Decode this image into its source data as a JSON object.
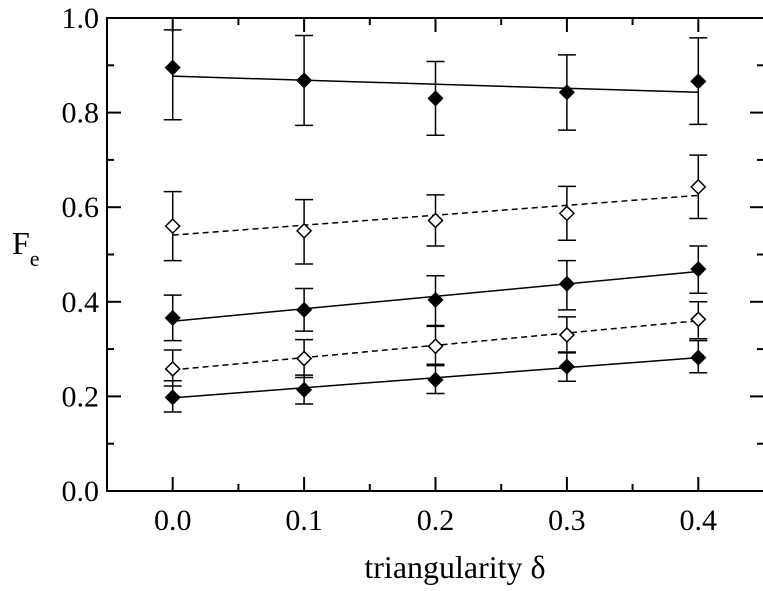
{
  "chart_data": {
    "type": "scatter",
    "xlabel": "triangularity δ",
    "ylabel": "F",
    "ylabel_subscript": "e",
    "xlim": [
      -0.05,
      0.45
    ],
    "ylim": [
      0.0,
      1.0
    ],
    "x_ticks": [
      "0.0",
      "0.1",
      "0.2",
      "0.3",
      "0.4"
    ],
    "y_ticks": [
      "0.0",
      "0.2",
      "0.4",
      "0.6",
      "0.8",
      "1.0"
    ],
    "grid": false,
    "x": [
      0.0,
      0.1,
      0.2,
      0.3,
      0.4
    ],
    "series": [
      {
        "marker": "filled-diamond",
        "line": "solid",
        "values": [
          0.895,
          0.868,
          0.83,
          0.843,
          0.866
        ],
        "err_low": [
          0.785,
          0.773,
          0.752,
          0.763,
          0.775
        ],
        "err_high": [
          0.975,
          0.963,
          0.908,
          0.922,
          0.958
        ],
        "fit": [
          0.877,
          0.843
        ]
      },
      {
        "marker": "open-diamond",
        "line": "dashed",
        "values": [
          0.56,
          0.55,
          0.572,
          0.587,
          0.643
        ],
        "err_low": [
          0.487,
          0.48,
          0.518,
          0.53,
          0.576
        ],
        "err_high": [
          0.633,
          0.616,
          0.626,
          0.644,
          0.71
        ],
        "fit": [
          0.541,
          0.625
        ]
      },
      {
        "marker": "filled-diamond",
        "line": "solid",
        "values": [
          0.366,
          0.383,
          0.404,
          0.438,
          0.469
        ],
        "err_low": [
          0.318,
          0.338,
          0.348,
          0.383,
          0.418
        ],
        "err_high": [
          0.414,
          0.428,
          0.455,
          0.487,
          0.518
        ],
        "fit": [
          0.359,
          0.464
        ]
      },
      {
        "marker": "open-diamond",
        "line": "dashed",
        "values": [
          0.258,
          0.28,
          0.306,
          0.33,
          0.363
        ],
        "err_low": [
          0.222,
          0.24,
          0.268,
          0.292,
          0.322
        ],
        "err_high": [
          0.298,
          0.32,
          0.35,
          0.368,
          0.4
        ],
        "fit": [
          0.256,
          0.36
        ]
      },
      {
        "marker": "filled-diamond",
        "line": "solid",
        "values": [
          0.198,
          0.214,
          0.235,
          0.263,
          0.282
        ],
        "err_low": [
          0.167,
          0.184,
          0.206,
          0.232,
          0.25
        ],
        "err_high": [
          0.233,
          0.245,
          0.265,
          0.294,
          0.318
        ],
        "fit": [
          0.197,
          0.282
        ]
      }
    ]
  }
}
